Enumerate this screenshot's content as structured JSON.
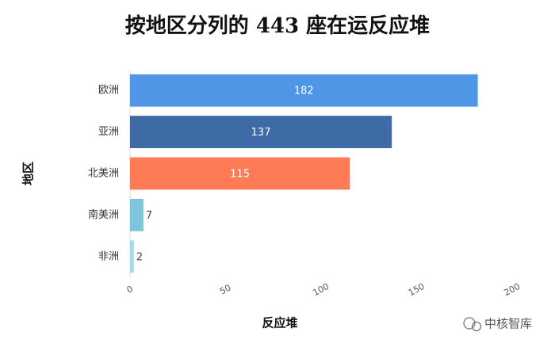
{
  "chart_data": {
    "type": "hbar",
    "title": "按地区分列的 443 座在运反应堆",
    "y_label": "地区",
    "x_label": "反应堆",
    "categories": [
      "欧洲",
      "亚洲",
      "北美洲",
      "南美洲",
      "非洲"
    ],
    "values": [
      182,
      137,
      115,
      7,
      2
    ],
    "colors": [
      "#4f96e6",
      "#3e6aa6",
      "#ff7b56",
      "#7ec4da",
      "#a9d8e7"
    ],
    "xlim": [
      0,
      200
    ],
    "xticks": [
      0,
      50,
      100,
      150,
      200
    ],
    "grid": false
  },
  "watermark": "中核智库"
}
